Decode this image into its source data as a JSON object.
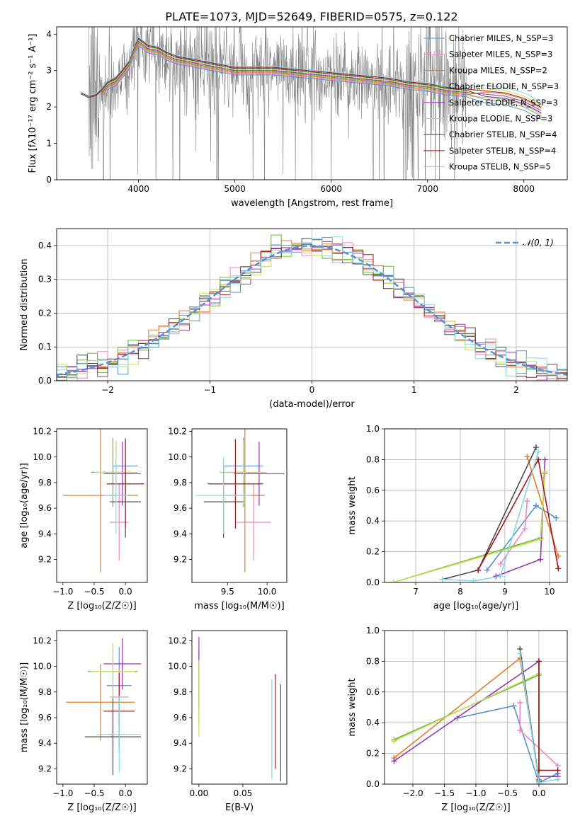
{
  "title": "PLATE=1073, MJD=52649, FIBERID=0575, z=0.122",
  "colors": {
    "Chabrier MILES": "#5b8fd6",
    "Salpeter MILES": "#ee88c4",
    "Kroupa MILES": "#e07f2a",
    "Chabrier ELODIE": "#6ab83a",
    "Salpeter ELODIE": "#9a32b6",
    "Kroupa ELODIE": "#c3e05a",
    "Chabrier STELIB": "#4a4a4a",
    "Salpeter STELIB": "#a01818",
    "Kroupa STELIB": "#86d8e6",
    "data": "#808080",
    "gaussian": "#5b8fd6"
  },
  "chart_data": [
    {
      "id": "spectrum",
      "type": "line",
      "xlabel": "wavelength [Angstrom, rest frame]",
      "ylabel": "Flux [fλ10⁻¹⁷ erg cm⁻² s⁻¹ A⁻¹]",
      "xlim": [
        3150,
        8450
      ],
      "ylim": [
        0,
        4.2
      ],
      "xticks": [
        4000,
        5000,
        6000,
        7000,
        8000
      ],
      "yticks": [
        0,
        1,
        2,
        3,
        4
      ],
      "grid": false,
      "legend_position": "right",
      "legend": [
        "Chabrier MILES, N_SSP=3",
        "Salpeter MILES, N_SSP=3",
        "Kroupa MILES, N_SSP=2",
        "Chabrier ELODIE, N_SSP=3",
        "Salpeter ELODIE, N_SSP=3",
        "Kroupa ELODIE, N_SSP=3",
        "Chabrier STELIB, N_SSP=4",
        "Salpeter STELIB, N_SSP=4",
        "Kroupa STELIB, N_SSP=5"
      ],
      "continuum": {
        "x": [
          3400,
          3480,
          3560,
          3620,
          3680,
          3760,
          3840,
          3900,
          3960,
          4000,
          4100,
          4200,
          4300,
          4400,
          4600,
          4800,
          5000,
          5200,
          5400,
          5600,
          5800,
          6000,
          6200,
          6400,
          6600,
          6800,
          7000,
          7200,
          7400,
          7600,
          7800,
          8000,
          8180
        ],
        "y": [
          2.3,
          2.2,
          2.25,
          2.4,
          2.6,
          2.7,
          2.95,
          3.15,
          3.6,
          3.8,
          3.6,
          3.55,
          3.4,
          3.3,
          3.2,
          3.1,
          3.0,
          3.0,
          3.0,
          2.95,
          2.9,
          2.85,
          2.8,
          2.75,
          2.7,
          2.6,
          2.55,
          2.45,
          2.4,
          2.35,
          2.3,
          2.15,
          1.9
        ]
      }
    },
    {
      "id": "residuals",
      "type": "bar",
      "xlabel": "(data-model)/error",
      "ylabel": "Normed distribution",
      "xlim": [
        -2.5,
        2.5
      ],
      "ylim": [
        0,
        0.45
      ],
      "xticks": [
        -2,
        -1,
        0,
        1,
        2
      ],
      "yticks": [
        0.0,
        0.1,
        0.2,
        0.3,
        0.4
      ],
      "grid": true,
      "gaussian_label": "𝒩(0, 1)",
      "bin_width": 0.1
    },
    {
      "id": "age-vs-Z",
      "type": "scatter",
      "xlabel": "Z [log₁₀(Z/Z☉)]",
      "ylabel": "age  [log₁₀(age/yr)]",
      "xlim": [
        -1.1,
        0.35
      ],
      "ylim": [
        9.02,
        10.22
      ],
      "xticks": [
        -1.0,
        -0.5,
        0.0
      ],
      "yticks": [
        9.2,
        9.4,
        9.6,
        9.8,
        10.0,
        10.2
      ],
      "errorbars": [
        {
          "model": "Chabrier MILES",
          "x": 0.0,
          "xerr": 0.2,
          "y": 9.93,
          "yerr": 0.22
        },
        {
          "model": "Salpeter MILES",
          "x": -0.1,
          "xerr": 0.15,
          "y": 9.49,
          "yerr": 0.3
        },
        {
          "model": "Kroupa MILES",
          "x": -0.4,
          "xerr": 0.6,
          "y": 9.7,
          "yerr": 0.6
        },
        {
          "model": "Chabrier ELODIE",
          "x": -0.2,
          "xerr": 0.35,
          "y": 9.88,
          "yerr": 0.27
        },
        {
          "model": "Salpeter ELODIE",
          "x": -0.05,
          "xerr": 0.3,
          "y": 9.87,
          "yerr": 0.25
        },
        {
          "model": "Kroupa ELODIE",
          "x": -0.15,
          "xerr": 0.35,
          "y": 9.88,
          "yerr": 0.25
        },
        {
          "model": "Chabrier STELIB",
          "x": 0.0,
          "xerr": 0.25,
          "y": 9.65,
          "yerr": 0.28
        },
        {
          "model": "Salpeter STELIB",
          "x": 0.0,
          "xerr": 0.3,
          "y": 9.79,
          "yerr": 0.35
        },
        {
          "model": "Kroupa STELIB",
          "x": -0.15,
          "xerr": 0.2,
          "y": 9.7,
          "yerr": 0.3
        }
      ]
    },
    {
      "id": "age-vs-mass",
      "type": "scatter",
      "xlabel": "mass [log₁₀(M/M☉)]",
      "ylabel": "",
      "xlim": [
        9.05,
        10.25
      ],
      "ylim": [
        9.02,
        10.22
      ],
      "xticks": [
        9.5,
        10.0
      ],
      "yticks": [
        9.2,
        9.4,
        9.6,
        9.8,
        10.0,
        10.2
      ],
      "errorbars": [
        {
          "model": "Chabrier MILES",
          "x": 9.7,
          "xerr": 0.25,
          "y": 9.93,
          "yerr": 0.22
        },
        {
          "model": "Salpeter MILES",
          "x": 9.83,
          "xerr": 0.22,
          "y": 9.49,
          "yerr": 0.3
        },
        {
          "model": "Kroupa MILES",
          "x": 9.72,
          "xerr": 0.25,
          "y": 9.7,
          "yerr": 0.6
        },
        {
          "model": "Chabrier ELODIE",
          "x": 9.7,
          "xerr": 0.25,
          "y": 9.88,
          "yerr": 0.27
        },
        {
          "model": "Salpeter ELODIE",
          "x": 9.9,
          "xerr": 0.32,
          "y": 9.87,
          "yerr": 0.25
        },
        {
          "model": "Kroupa ELODIE",
          "x": 9.7,
          "xerr": 0.3,
          "y": 9.88,
          "yerr": 0.25
        },
        {
          "model": "Chabrier STELIB",
          "x": 9.45,
          "xerr": 0.25,
          "y": 9.65,
          "yerr": 0.28
        },
        {
          "model": "Salpeter STELIB",
          "x": 9.6,
          "xerr": 0.35,
          "y": 9.79,
          "yerr": 0.35
        },
        {
          "model": "Kroupa STELIB",
          "x": 9.45,
          "xerr": 0.35,
          "y": 9.7,
          "yerr": 0.3
        }
      ]
    },
    {
      "id": "mass-weight-vs-age",
      "type": "line",
      "xlabel": "age  [log₁₀(age/yr)]",
      "ylabel": "mass weight",
      "xlim": [
        6.3,
        10.4
      ],
      "ylim": [
        0,
        1
      ],
      "xticks": [
        7,
        8,
        9,
        10
      ],
      "yticks": [
        0.0,
        0.2,
        0.4,
        0.6,
        0.8,
        1.0
      ],
      "grid": true,
      "series": [
        {
          "model": "Chabrier MILES",
          "x": [
            8.6,
            9.7,
            10.15
          ],
          "y": [
            0.08,
            0.5,
            0.42
          ]
        },
        {
          "model": "Salpeter MILES",
          "x": [
            8.9,
            9.45,
            9.5
          ],
          "y": [
            0.12,
            0.35,
            0.53
          ]
        },
        {
          "model": "Kroupa MILES",
          "x": [
            9.5,
            10.2
          ],
          "y": [
            0.82,
            0.17
          ]
        },
        {
          "model": "Chabrier ELODIE",
          "x": [
            6.5,
            9.8,
            9.9
          ],
          "y": [
            0.0,
            0.29,
            0.71
          ]
        },
        {
          "model": "Salpeter ELODIE",
          "x": [
            8.8,
            9.8,
            9.9
          ],
          "y": [
            0.04,
            0.15,
            0.8
          ]
        },
        {
          "model": "Kroupa ELODIE",
          "x": [
            6.5,
            9.8,
            9.9
          ],
          "y": [
            0.0,
            0.28,
            0.72
          ]
        },
        {
          "model": "Chabrier STELIB",
          "x": [
            7.6,
            8.4,
            9.7
          ],
          "y": [
            0.02,
            0.08,
            0.88
          ]
        },
        {
          "model": "Salpeter STELIB",
          "x": [
            8.4,
            9.75,
            10.2
          ],
          "y": [
            0.08,
            0.8,
            0.09
          ]
        },
        {
          "model": "Kroupa STELIB",
          "x": [
            7.6,
            8.3,
            8.9,
            9.75
          ],
          "y": [
            0.02,
            0.01,
            0.04,
            0.85
          ]
        }
      ]
    },
    {
      "id": "mass-vs-Z",
      "type": "scatter",
      "xlabel": "Z [log₁₀(Z/Z☉)]",
      "ylabel": "mass [log₁₀(M/M☉)]",
      "xlim": [
        -1.1,
        0.35
      ],
      "ylim": [
        9.08,
        10.28
      ],
      "xticks": [
        -1.0,
        -0.5,
        0.0
      ],
      "yticks": [
        9.2,
        9.4,
        9.6,
        9.8,
        10.0,
        10.2
      ],
      "errorbars": [
        {
          "model": "Chabrier MILES",
          "x": -0.1,
          "xerr": 0.2,
          "y": 9.85,
          "yerr": 0.3
        },
        {
          "model": "Salpeter MILES",
          "x": -0.1,
          "xerr": 0.15,
          "y": 9.76,
          "yerr": 0.22
        },
        {
          "model": "Kroupa MILES",
          "x": -0.4,
          "xerr": 0.55,
          "y": 9.72,
          "yerr": 0.3
        },
        {
          "model": "Chabrier ELODIE",
          "x": -0.2,
          "xerr": 0.4,
          "y": 9.96,
          "yerr": 0.22
        },
        {
          "model": "Salpeter ELODIE",
          "x": -0.05,
          "xerr": 0.3,
          "y": 10.02,
          "yerr": 0.2
        },
        {
          "model": "Kroupa ELODIE",
          "x": -0.2,
          "xerr": 0.35,
          "y": 9.96,
          "yerr": 0.22
        },
        {
          "model": "Chabrier STELIB",
          "x": -0.2,
          "xerr": 0.45,
          "y": 9.45,
          "yerr": 0.3
        },
        {
          "model": "Salpeter STELIB",
          "x": -0.1,
          "xerr": 0.25,
          "y": 9.65,
          "yerr": 0.3
        },
        {
          "model": "Kroupa STELIB",
          "x": -0.1,
          "xerr": 0.35,
          "y": 9.47,
          "yerr": 0.3
        }
      ]
    },
    {
      "id": "mass-vs-ebv",
      "type": "scatter",
      "xlabel": "E(B-V)",
      "ylabel": "",
      "xlim": [
        -0.008,
        0.1
      ],
      "ylim": [
        9.08,
        10.28
      ],
      "xticks": [
        0.0,
        0.05
      ],
      "yticks": [
        9.2,
        9.4,
        9.6,
        9.8,
        10.0,
        10.2
      ],
      "errorbars": [
        {
          "model": "Chabrier ELODIE",
          "x": 0.0,
          "xerr": 0,
          "y": 9.85,
          "yerr": 0.3
        },
        {
          "model": "Salpeter ELODIE",
          "x": 0.0,
          "xerr": 0,
          "y": 9.95,
          "yerr": 0.28
        },
        {
          "model": "Kroupa ELODIE",
          "x": 0.0,
          "xerr": 0,
          "y": 9.75,
          "yerr": 0.3
        },
        {
          "model": "Salpeter STELIB",
          "x": 0.087,
          "xerr": 0,
          "y": 9.57,
          "yerr": 0.37
        },
        {
          "model": "Chabrier STELIB",
          "x": 0.093,
          "xerr": 0,
          "y": 9.48,
          "yerr": 0.38
        },
        {
          "model": "Kroupa STELIB",
          "x": 0.083,
          "xerr": 0,
          "y": 9.51,
          "yerr": 0.39
        }
      ]
    },
    {
      "id": "mass-weight-vs-Z",
      "type": "line",
      "xlabel": "Z [log₁₀(Z/Z☉)]",
      "ylabel": "mass weight",
      "xlim": [
        -2.45,
        0.45
      ],
      "ylim": [
        0,
        1
      ],
      "xticks": [
        -2.0,
        -1.5,
        -1.0,
        -0.5,
        0.0
      ],
      "yticks": [
        0.0,
        0.2,
        0.4,
        0.6,
        0.8,
        1.0
      ],
      "grid": true,
      "series": [
        {
          "model": "Chabrier MILES",
          "x": [
            -1.3,
            -0.4,
            0.0,
            0.3
          ],
          "y": [
            0.43,
            0.51,
            0.01,
            0.07
          ]
        },
        {
          "model": "Salpeter MILES",
          "x": [
            -0.3,
            -0.3,
            0.3
          ],
          "y": [
            0.53,
            0.35,
            0.12
          ]
        },
        {
          "model": "Kroupa MILES",
          "x": [
            -2.3,
            -0.3,
            0.0
          ],
          "y": [
            0.17,
            0.82,
            0.03
          ]
        },
        {
          "model": "Chabrier ELODIE",
          "x": [
            -2.3,
            0.0,
            0.0
          ],
          "y": [
            0.29,
            0.71,
            0.0
          ]
        },
        {
          "model": "Salpeter ELODIE",
          "x": [
            -2.3,
            0.0,
            0.0,
            0.3
          ],
          "y": [
            0.15,
            0.8,
            0.05,
            0.05
          ]
        },
        {
          "model": "Kroupa ELODIE",
          "x": [
            -2.3,
            0.0,
            0.0
          ],
          "y": [
            0.28,
            0.72,
            0.0
          ]
        },
        {
          "model": "Chabrier STELIB",
          "x": [
            -0.3,
            0.0
          ],
          "y": [
            0.88,
            0.02
          ]
        },
        {
          "model": "Salpeter STELIB",
          "x": [
            0.0,
            0.0,
            0.3
          ],
          "y": [
            0.8,
            0.09,
            0.09
          ]
        },
        {
          "model": "Kroupa STELIB",
          "x": [
            -0.3,
            0.0,
            0.3
          ],
          "y": [
            0.85,
            0.01,
            0.03
          ]
        }
      ]
    }
  ]
}
